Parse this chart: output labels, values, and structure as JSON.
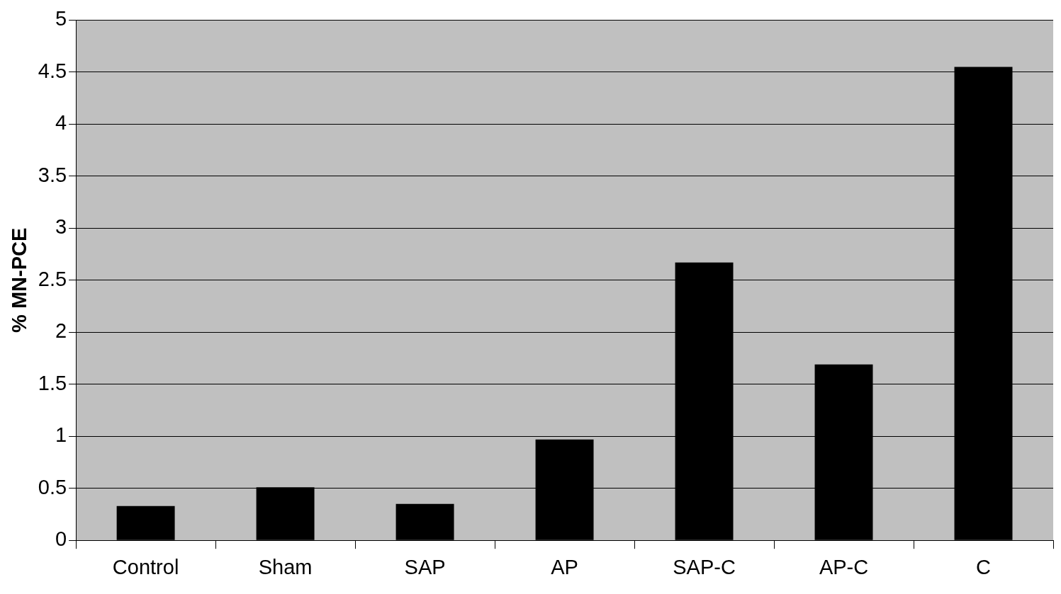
{
  "chart_data": {
    "type": "bar",
    "ylabel": "% MN-PCE",
    "categories": [
      "Control",
      "Sham",
      "SAP",
      "AP",
      "SAP-C",
      "AP-C",
      "C"
    ],
    "values": [
      0.33,
      0.51,
      0.35,
      0.97,
      2.67,
      1.69,
      4.55
    ],
    "color": "#000000",
    "ylim": [
      0,
      5
    ],
    "yticks": [
      0,
      0.5,
      1,
      1.5,
      2,
      2.5,
      3,
      3.5,
      4,
      4.5,
      5
    ],
    "grid": "y",
    "legend": false
  }
}
